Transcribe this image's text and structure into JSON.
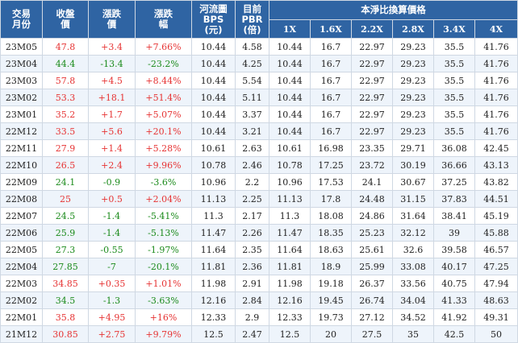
{
  "headers": {
    "month": "交易\n月份",
    "close": "收盤\n價",
    "change": "漲跌\n價",
    "pct": "漲跌\n幅",
    "bps": "河流圖\nBPS\n(元)",
    "pbr": "目前\nPBR\n(倍)",
    "group": "本淨比換算價格",
    "multiples": [
      "1X",
      "1.6X",
      "2.2X",
      "2.8X",
      "3.4X",
      "4X"
    ]
  },
  "colors": {
    "header_bg": "#2f64a3",
    "up": "#e63333",
    "down": "#1a8a1a",
    "row_alt": "#eef4fb"
  },
  "rows": [
    {
      "month": "23M05",
      "close": "47.8",
      "change": "+3.4",
      "pct": "+7.66%",
      "dir": "up",
      "bps": "10.44",
      "pbr": "4.58",
      "m": [
        "10.44",
        "16.7",
        "22.97",
        "29.23",
        "35.5",
        "41.76"
      ]
    },
    {
      "month": "23M04",
      "close": "44.4",
      "change": "-13.4",
      "pct": "-23.2%",
      "dir": "down",
      "bps": "10.44",
      "pbr": "4.25",
      "m": [
        "10.44",
        "16.7",
        "22.97",
        "29.23",
        "35.5",
        "41.76"
      ]
    },
    {
      "month": "23M03",
      "close": "57.8",
      "change": "+4.5",
      "pct": "+8.44%",
      "dir": "up",
      "bps": "10.44",
      "pbr": "5.54",
      "m": [
        "10.44",
        "16.7",
        "22.97",
        "29.23",
        "35.5",
        "41.76"
      ]
    },
    {
      "month": "23M02",
      "close": "53.3",
      "change": "+18.1",
      "pct": "+51.4%",
      "dir": "up",
      "bps": "10.44",
      "pbr": "5.11",
      "m": [
        "10.44",
        "16.7",
        "22.97",
        "29.23",
        "35.5",
        "41.76"
      ]
    },
    {
      "month": "23M01",
      "close": "35.2",
      "change": "+1.7",
      "pct": "+5.07%",
      "dir": "up",
      "bps": "10.44",
      "pbr": "3.37",
      "m": [
        "10.44",
        "16.7",
        "22.97",
        "29.23",
        "35.5",
        "41.76"
      ]
    },
    {
      "month": "22M12",
      "close": "33.5",
      "change": "+5.6",
      "pct": "+20.1%",
      "dir": "up",
      "bps": "10.44",
      "pbr": "3.21",
      "m": [
        "10.44",
        "16.7",
        "22.97",
        "29.23",
        "35.5",
        "41.76"
      ]
    },
    {
      "month": "22M11",
      "close": "27.9",
      "change": "+1.4",
      "pct": "+5.28%",
      "dir": "up",
      "bps": "10.61",
      "pbr": "2.63",
      "m": [
        "10.61",
        "16.98",
        "23.35",
        "29.71",
        "36.08",
        "42.45"
      ]
    },
    {
      "month": "22M10",
      "close": "26.5",
      "change": "+2.4",
      "pct": "+9.96%",
      "dir": "up",
      "bps": "10.78",
      "pbr": "2.46",
      "m": [
        "10.78",
        "17.25",
        "23.72",
        "30.19",
        "36.66",
        "43.13"
      ]
    },
    {
      "month": "22M09",
      "close": "24.1",
      "change": "-0.9",
      "pct": "-3.6%",
      "dir": "down",
      "bps": "10.96",
      "pbr": "2.2",
      "m": [
        "10.96",
        "17.53",
        "24.1",
        "30.67",
        "37.25",
        "43.82"
      ]
    },
    {
      "month": "22M08",
      "close": "25",
      "change": "+0.5",
      "pct": "+2.04%",
      "dir": "up",
      "bps": "11.13",
      "pbr": "2.25",
      "m": [
        "11.13",
        "17.8",
        "24.48",
        "31.15",
        "37.83",
        "44.51"
      ]
    },
    {
      "month": "22M07",
      "close": "24.5",
      "change": "-1.4",
      "pct": "-5.41%",
      "dir": "down",
      "bps": "11.3",
      "pbr": "2.17",
      "m": [
        "11.3",
        "18.08",
        "24.86",
        "31.64",
        "38.41",
        "45.19"
      ]
    },
    {
      "month": "22M06",
      "close": "25.9",
      "change": "-1.4",
      "pct": "-5.13%",
      "dir": "down",
      "bps": "11.47",
      "pbr": "2.26",
      "m": [
        "11.47",
        "18.35",
        "25.23",
        "32.12",
        "39",
        "45.88"
      ]
    },
    {
      "month": "22M05",
      "close": "27.3",
      "change": "-0.55",
      "pct": "-1.97%",
      "dir": "down",
      "bps": "11.64",
      "pbr": "2.35",
      "m": [
        "11.64",
        "18.63",
        "25.61",
        "32.6",
        "39.58",
        "46.57"
      ]
    },
    {
      "month": "22M04",
      "close": "27.85",
      "change": "-7",
      "pct": "-20.1%",
      "dir": "down",
      "bps": "11.81",
      "pbr": "2.36",
      "m": [
        "11.81",
        "18.9",
        "25.99",
        "33.08",
        "40.17",
        "47.25"
      ]
    },
    {
      "month": "22M03",
      "close": "34.85",
      "change": "+0.35",
      "pct": "+1.01%",
      "dir": "up",
      "bps": "11.98",
      "pbr": "2.91",
      "m": [
        "11.98",
        "19.18",
        "26.37",
        "33.56",
        "40.75",
        "47.94"
      ]
    },
    {
      "month": "22M02",
      "close": "34.5",
      "change": "-1.3",
      "pct": "-3.63%",
      "dir": "down",
      "bps": "12.16",
      "pbr": "2.84",
      "m": [
        "12.16",
        "19.45",
        "26.74",
        "34.04",
        "41.33",
        "48.63"
      ]
    },
    {
      "month": "22M01",
      "close": "35.8",
      "change": "+4.95",
      "pct": "+16%",
      "dir": "up",
      "bps": "12.33",
      "pbr": "2.9",
      "m": [
        "12.33",
        "19.73",
        "27.12",
        "34.52",
        "41.92",
        "49.31"
      ]
    },
    {
      "month": "21M12",
      "close": "30.85",
      "change": "+2.75",
      "pct": "+9.79%",
      "dir": "up",
      "bps": "12.5",
      "pbr": "2.47",
      "m": [
        "12.5",
        "20",
        "27.5",
        "35",
        "42.5",
        "50"
      ]
    }
  ]
}
